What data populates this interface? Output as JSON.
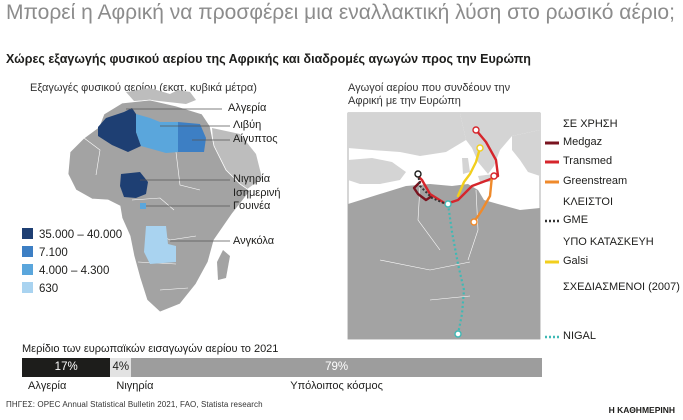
{
  "title": "Μπορεί η Αφρική να προσφέρει μια εναλλακτική λύση στο ρωσικό αέριο;",
  "subtitle": "Χώρες εξαγωγής φυσικού αερίου της Αφρικής και διαδρομές αγωγών προς την Ευρώπη",
  "exports_map": {
    "caption": "Εξαγωγές φυσικού αερίου (εκατ. κυβικά μέτρα)",
    "countries": [
      {
        "label": "Αλγερία"
      },
      {
        "label": "Λιβύη"
      },
      {
        "label": "Αίγυπτος"
      },
      {
        "label": "Νιγηρία"
      },
      {
        "label": "Ισημερινή Γουινέα"
      },
      {
        "label": "Ανγκόλα"
      }
    ],
    "legend": [
      {
        "label": "35.000 – 40.000",
        "color": "#1e3f73"
      },
      {
        "label": "7.100",
        "color": "#3d7fc4"
      },
      {
        "label": "4.000 – 4.300",
        "color": "#5aa6dc"
      },
      {
        "label": "630",
        "color": "#a9d3f0"
      }
    ],
    "colors": {
      "land": "#a3a3a3",
      "ocean": "#ffffff"
    }
  },
  "pipelines_map": {
    "caption": "Αγωγοί αερίου που συνδέουν την Αφρική με την Ευρώπη",
    "groups": [
      {
        "heading": "ΣΕ ΧΡΗΣΗ",
        "items": [
          {
            "name": "Medgaz",
            "color": "#7a1420",
            "style": "solid"
          },
          {
            "name": "Transmed",
            "color": "#d6252b",
            "style": "solid"
          },
          {
            "name": "Greenstream",
            "color": "#ef8a2b",
            "style": "solid"
          }
        ]
      },
      {
        "heading": "ΚΛΕΙΣΤΟΙ",
        "items": [
          {
            "name": "GME",
            "color": "#333333",
            "style": "dotted"
          }
        ]
      },
      {
        "heading": "ΥΠΟ ΚΑΤΑΣΚΕΥΗ",
        "items": [
          {
            "name": "Galsi",
            "color": "#f2cf1d",
            "style": "solid"
          }
        ]
      },
      {
        "heading": "ΣΧΕΔΙΑΣΜΕΝΟΙ (2007)",
        "items": [
          {
            "name": "NIGAL",
            "color": "#3fb9b5",
            "style": "dotted"
          }
        ]
      }
    ]
  },
  "chart_data": {
    "type": "bar",
    "title": "Μερίδιο των ευρωπαϊκών εισαγωγών αερίου το 2021",
    "orientation": "horizontal-stacked",
    "unit": "%",
    "categories": [
      "Αλγερία",
      "Νιγηρία",
      "Υπόλοιπος κόσμος"
    ],
    "values": [
      17,
      4,
      79
    ],
    "value_labels": [
      "17%",
      "4%",
      "79%"
    ],
    "colors": [
      "#1d1d1b",
      "#e2e2e2",
      "#9d9d9d"
    ],
    "xlim": [
      0,
      100
    ]
  },
  "source": "ΠΗΓΕΣ: OPEC Annual Statistical Bulletin 2021, FAO, Statista research",
  "brand": "Η ΚΑΘΗΜΕΡΙΝΗ"
}
